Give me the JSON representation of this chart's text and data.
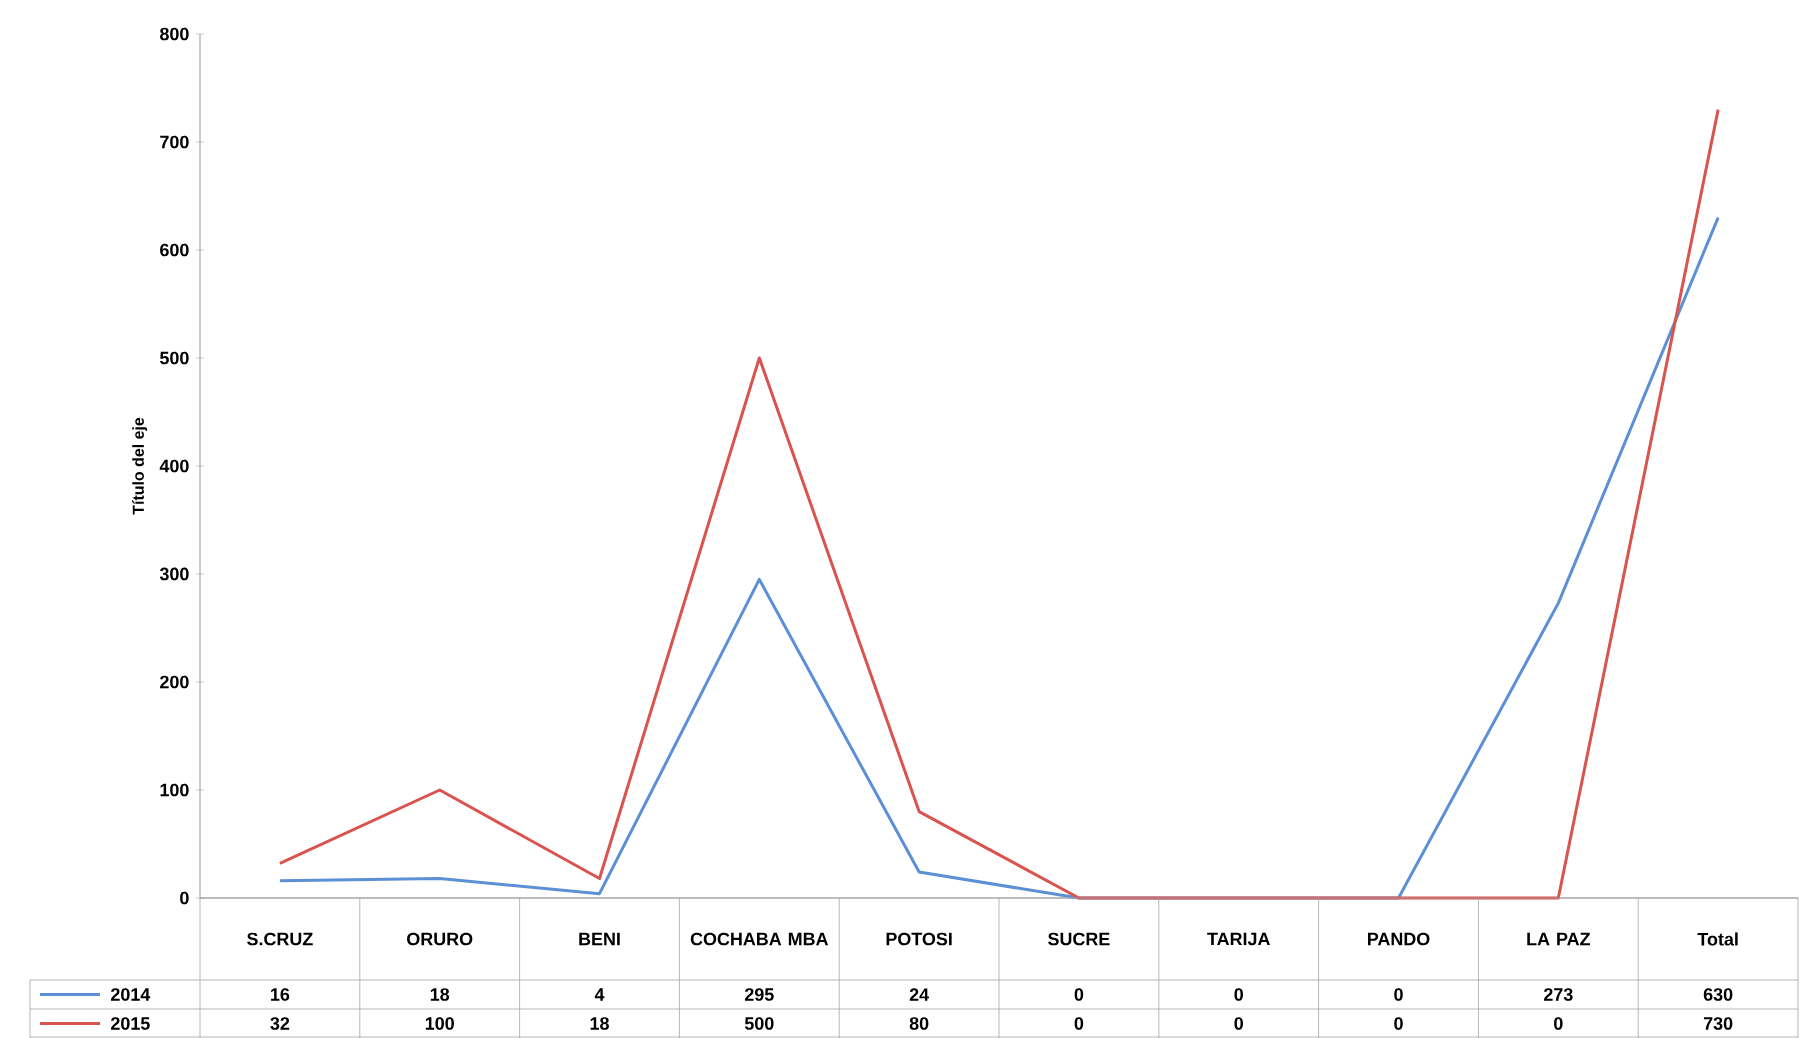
{
  "chart_data": {
    "type": "line",
    "ylabel": "Título del eje",
    "categories": [
      "S.CRUZ",
      "ORURO",
      "BENI",
      "COCHABA MBA",
      "POTOSI",
      "SUCRE",
      "TARIJA",
      "PANDO",
      "LA PAZ",
      "Total"
    ],
    "series": [
      {
        "name": "2014",
        "color": "#5b8fd6",
        "values": [
          16,
          18,
          4,
          295,
          24,
          0,
          0,
          0,
          273,
          630
        ]
      },
      {
        "name": "2015",
        "color": "#d9534f",
        "values": [
          32,
          100,
          18,
          500,
          80,
          0,
          0,
          0,
          0,
          730
        ]
      }
    ],
    "ylim": [
      0,
      800
    ],
    "yticks": [
      0,
      100,
      200,
      300,
      400,
      500,
      600,
      700,
      800
    ],
    "grid": false,
    "legend": "bottom",
    "data_labels": true,
    "marker": "none",
    "line_style": "solid"
  }
}
